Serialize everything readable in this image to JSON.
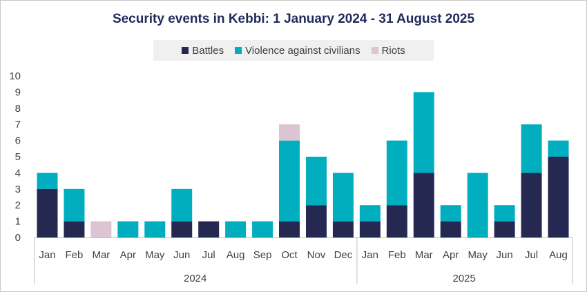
{
  "chart_data": {
    "type": "bar",
    "stacked": true,
    "title": "Security events in Kebbi: 1 January 2024 - 31 August 2025",
    "categories": [
      "Jan",
      "Feb",
      "Mar",
      "Apr",
      "May",
      "Jun",
      "Jul",
      "Aug",
      "Sep",
      "Oct",
      "Nov",
      "Dec",
      "Jan",
      "Feb",
      "Mar",
      "Apr",
      "May",
      "Jun",
      "Jul",
      "Aug"
    ],
    "groups": [
      {
        "label": "2024",
        "start": 0,
        "count": 12
      },
      {
        "label": "2025",
        "start": 12,
        "count": 8
      }
    ],
    "series": [
      {
        "name": "Battles",
        "color": "#252850",
        "values": [
          3,
          1,
          0,
          0,
          0,
          1,
          1,
          0,
          0,
          1,
          2,
          1,
          1,
          2,
          4,
          1,
          0,
          1,
          4,
          5
        ]
      },
      {
        "name": "Violence against civilians",
        "color": "#00aec0",
        "values": [
          1,
          2,
          0,
          1,
          1,
          2,
          0,
          1,
          1,
          5,
          3,
          3,
          1,
          4,
          5,
          1,
          4,
          1,
          3,
          1
        ]
      },
      {
        "name": "Riots",
        "color": "#dcc4d2",
        "values": [
          0,
          0,
          1,
          0,
          0,
          0,
          0,
          0,
          0,
          1,
          0,
          0,
          0,
          0,
          0,
          0,
          0,
          0,
          0,
          0
        ]
      }
    ],
    "yticks": [
      0,
      1,
      2,
      3,
      4,
      5,
      6,
      7,
      8,
      9,
      10
    ],
    "ylim": [
      0,
      10
    ],
    "xlabel": "",
    "ylabel": "",
    "legend_position": "top-center"
  }
}
